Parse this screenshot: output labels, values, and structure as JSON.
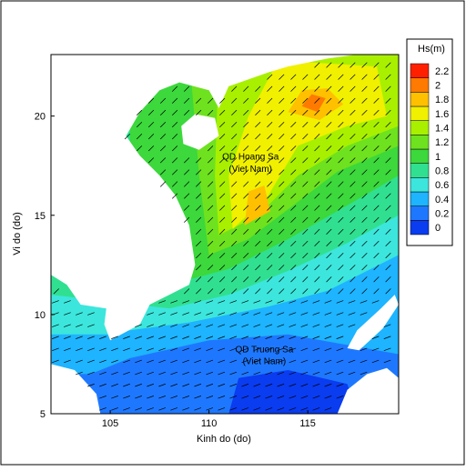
{
  "chart_data": {
    "type": "contour-map",
    "xlabel": "Kinh do (do)",
    "ylabel": "Vi do (do)",
    "xlim": [
      102,
      119.6
    ],
    "ylim": [
      5,
      23.1
    ],
    "xticks": [
      105,
      110,
      115
    ],
    "yticks": [
      5,
      10,
      15,
      20
    ],
    "annotations": [
      "QD Hoang Sa",
      "(Viet Nam)",
      "QD Truong Sa",
      "(Viet Nam)"
    ],
    "colorbar": {
      "title": "Hs(m)",
      "ticks": [
        0,
        0.2,
        0.4,
        0.6,
        0.8,
        1,
        1.2,
        1.4,
        1.6,
        1.8,
        2,
        2.2
      ],
      "colors": [
        "#0a3cf0",
        "#1e78ff",
        "#1eb4ff",
        "#3ce6dc",
        "#30e090",
        "#3cd83c",
        "#6ee21e",
        "#a8f000",
        "#f0f000",
        "#ffc000",
        "#ff7a00",
        "#ff2000"
      ]
    },
    "regions": [
      {
        "level": 0.2,
        "polygon": [
          [
            102,
            5
          ],
          [
            102,
            23.1
          ],
          [
            119.6,
            23.1
          ],
          [
            119.6,
            5
          ]
        ]
      },
      {
        "level": 0.4,
        "polygon": [
          [
            102,
            7
          ],
          [
            104,
            7
          ],
          [
            106,
            7.8
          ],
          [
            110,
            8.7
          ],
          [
            114,
            9
          ],
          [
            119.6,
            8
          ],
          [
            119.6,
            23.1
          ],
          [
            102,
            23.1
          ]
        ]
      },
      {
        "level": 0,
        "polygon": [
          [
            111,
            5
          ],
          [
            111.5,
            6.8
          ],
          [
            114,
            7.2
          ],
          [
            117,
            6.5
          ],
          [
            117.5,
            5
          ]
        ]
      },
      {
        "level": 0.6,
        "polygon": [
          [
            102,
            9
          ],
          [
            105,
            9
          ],
          [
            106,
            9.2
          ],
          [
            109,
            9.6
          ],
          [
            113,
            10.4
          ],
          [
            116,
            11.2
          ],
          [
            119.6,
            13
          ],
          [
            119.6,
            23.1
          ],
          [
            102,
            23.1
          ]
        ]
      },
      {
        "level": 0.8,
        "polygon": [
          [
            102,
            11
          ],
          [
            108,
            10.3
          ],
          [
            111,
            11
          ],
          [
            114,
            12.2
          ],
          [
            117,
            13.6
          ],
          [
            119.6,
            15
          ],
          [
            119.6,
            23.1
          ],
          [
            102,
            23.1
          ]
        ]
      },
      {
        "level": 1,
        "polygon": [
          [
            108,
            11.5
          ],
          [
            111,
            12.3
          ],
          [
            114,
            13.8
          ],
          [
            117,
            15.5
          ],
          [
            119.6,
            17
          ],
          [
            119.6,
            23.1
          ],
          [
            106,
            23.1
          ],
          [
            106,
            17
          ]
        ]
      },
      {
        "level": 1.2,
        "polygon": [
          [
            110,
            13
          ],
          [
            112,
            13.8
          ],
          [
            114,
            15.3
          ],
          [
            116.5,
            17.2
          ],
          [
            119.6,
            18.5
          ],
          [
            119.6,
            23.1
          ],
          [
            109,
            23.1
          ],
          [
            109.5,
            17
          ]
        ]
      },
      {
        "level": 1.4,
        "polygon": [
          [
            110.5,
            14
          ],
          [
            112.5,
            15
          ],
          [
            114.5,
            17
          ],
          [
            117,
            18.5
          ],
          [
            119.6,
            19.5
          ],
          [
            119.6,
            23.1
          ],
          [
            110.5,
            23.1
          ],
          [
            110.3,
            17
          ]
        ]
      },
      {
        "level": 1.6,
        "polygon": [
          [
            111.2,
            14.3
          ],
          [
            113,
            16
          ],
          [
            114.5,
            18.5
          ],
          [
            117,
            19.5
          ],
          [
            119,
            20
          ],
          [
            118.5,
            22.5
          ],
          [
            113.5,
            22.8
          ],
          [
            112,
            20
          ],
          [
            111,
            17
          ]
        ]
      },
      {
        "level": 1.8,
        "polygon": [
          [
            114,
            20.2
          ],
          [
            114.7,
            21.3
          ],
          [
            116,
            21.4
          ],
          [
            116.8,
            20.6
          ],
          [
            115.6,
            19.8
          ]
        ]
      },
      {
        "level": 1.8,
        "polygon": [
          [
            111.8,
            14.5
          ],
          [
            112,
            16.2
          ],
          [
            112.8,
            16.5
          ],
          [
            113.1,
            15.2
          ]
        ]
      },
      {
        "level": 2,
        "polygon": [
          [
            114.7,
            20.5
          ],
          [
            115.2,
            21.1
          ],
          [
            115.9,
            20.9
          ],
          [
            115.5,
            20.2
          ]
        ]
      }
    ]
  }
}
